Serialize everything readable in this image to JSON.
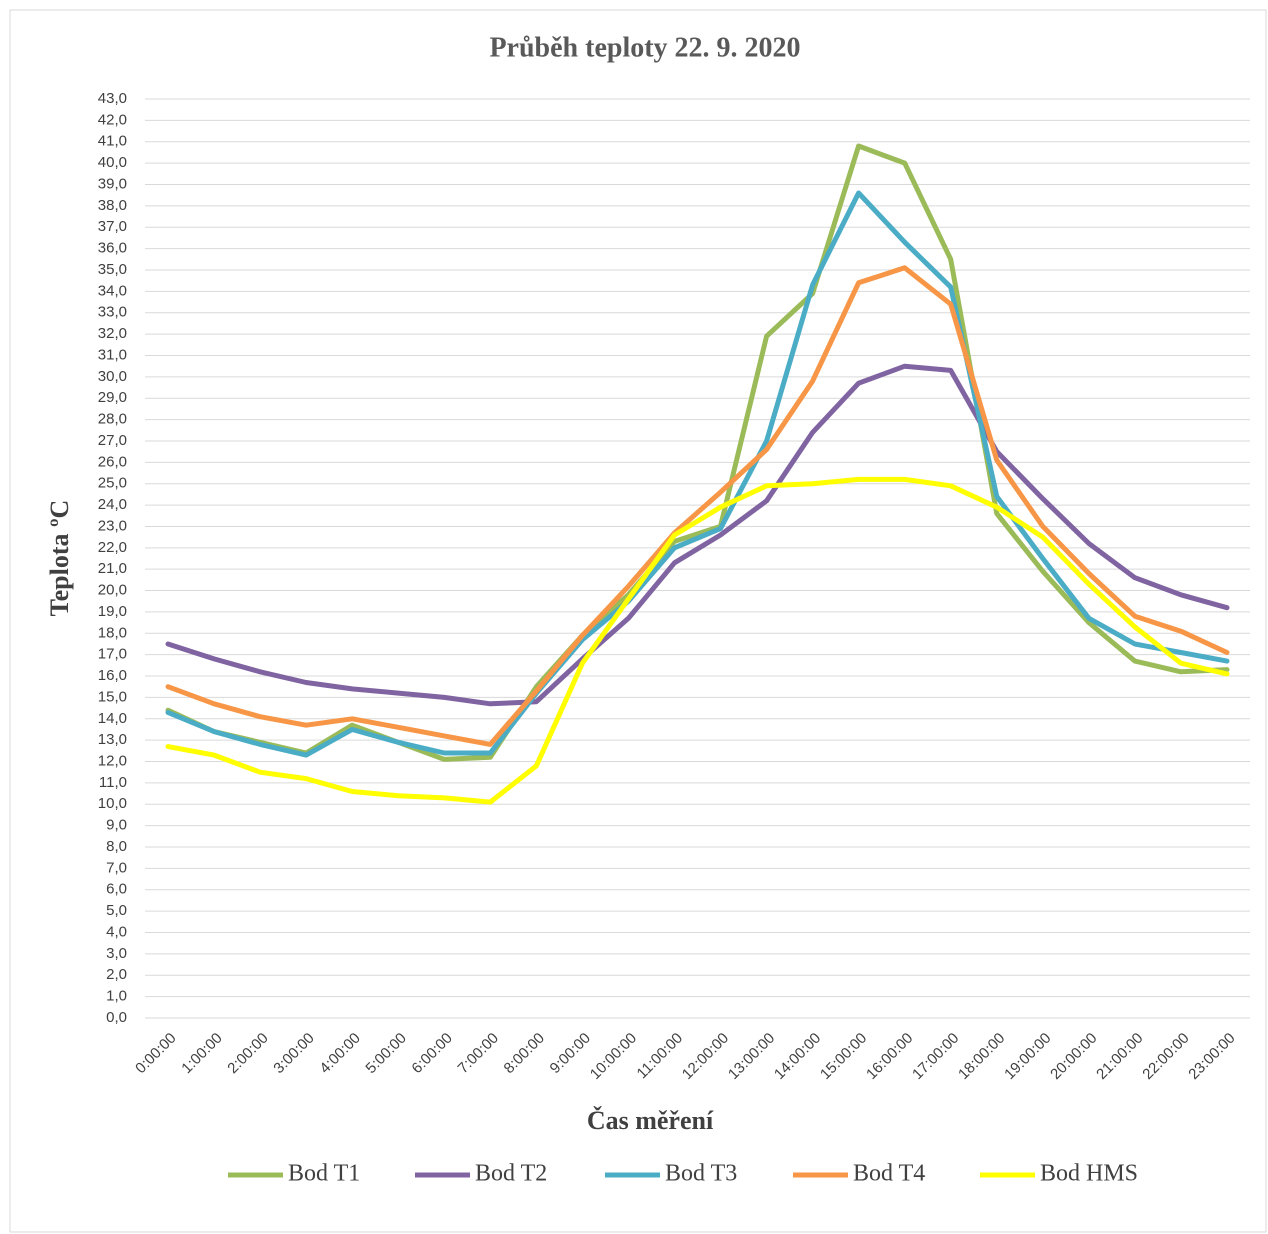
{
  "chart_data": {
    "type": "line",
    "title": "Průběh teploty 22. 9. 2020",
    "x_label": "Čas měření",
    "y_label": "Teplota ºC",
    "categories": [
      "0:00:00",
      "1:00:00",
      "2:00:00",
      "3:00:00",
      "4:00:00",
      "5:00:00",
      "6:00:00",
      "7:00:00",
      "8:00:00",
      "9:00:00",
      "10:00:00",
      "11:00:00",
      "12:00:00",
      "13:00:00",
      "14:00:00",
      "15:00:00",
      "16:00:00",
      "17:00:00",
      "18:00:00",
      "19:00:00",
      "20:00:00",
      "21:00:00",
      "22:00:00",
      "23:00:00"
    ],
    "series": [
      {
        "name": "Bod T1",
        "color": "#9bbb59",
        "values": [
          14.4,
          13.4,
          12.9,
          12.4,
          13.7,
          12.9,
          12.1,
          12.2,
          15.5,
          17.9,
          19.8,
          22.3,
          23.0,
          31.9,
          33.9,
          40.8,
          40.0,
          35.5,
          23.6,
          20.9,
          18.5,
          16.7,
          16.2,
          16.3
        ]
      },
      {
        "name": "Bod T2",
        "color": "#8064a2",
        "values": [
          17.5,
          16.8,
          16.2,
          15.7,
          15.4,
          15.2,
          15.0,
          14.7,
          14.8,
          16.8,
          18.7,
          21.3,
          22.6,
          24.2,
          27.4,
          29.7,
          30.5,
          30.3,
          26.5,
          24.3,
          22.2,
          20.6,
          19.8,
          19.2
        ]
      },
      {
        "name": "Bod T3",
        "color": "#4bacc6",
        "values": [
          14.3,
          13.4,
          12.8,
          12.3,
          13.5,
          12.9,
          12.4,
          12.4,
          15.2,
          17.7,
          19.5,
          22.0,
          22.9,
          27.0,
          34.3,
          38.6,
          36.3,
          34.2,
          24.4,
          21.5,
          18.7,
          17.5,
          17.1,
          16.7
        ]
      },
      {
        "name": "Bod T4",
        "color": "#f79646",
        "values": [
          15.5,
          14.7,
          14.1,
          13.7,
          14.0,
          13.6,
          13.2,
          12.8,
          15.3,
          17.9,
          20.2,
          22.7,
          24.6,
          26.6,
          29.8,
          34.4,
          35.1,
          33.4,
          26.1,
          23.0,
          20.8,
          18.8,
          18.1,
          17.1
        ]
      },
      {
        "name": "Bod HMS",
        "color": "#ffff00",
        "values": [
          12.7,
          12.3,
          11.5,
          11.2,
          10.6,
          10.4,
          10.3,
          10.1,
          11.8,
          16.6,
          19.6,
          22.6,
          23.9,
          24.9,
          25.0,
          25.2,
          25.2,
          24.9,
          23.9,
          22.5,
          20.3,
          18.3,
          16.6,
          16.1
        ]
      }
    ],
    "ylim": [
      0,
      43
    ],
    "yticks": [
      {
        "value": 0,
        "label": "0,0"
      },
      {
        "value": 1,
        "label": "1,0"
      },
      {
        "value": 2,
        "label": "2,0"
      },
      {
        "value": 3,
        "label": "3,0"
      },
      {
        "value": 4,
        "label": "4,0"
      },
      {
        "value": 5,
        "label": "5,0"
      },
      {
        "value": 6,
        "label": "6,0"
      },
      {
        "value": 7,
        "label": "7,0"
      },
      {
        "value": 8,
        "label": "8,0"
      },
      {
        "value": 9,
        "label": "9,0"
      },
      {
        "value": 10,
        "label": "10,0"
      },
      {
        "value": 11,
        "label": "11,0"
      },
      {
        "value": 12,
        "label": "12,0"
      },
      {
        "value": 13,
        "label": "13,0"
      },
      {
        "value": 14,
        "label": "14,0"
      },
      {
        "value": 15,
        "label": "15,0"
      },
      {
        "value": 16,
        "label": "16,0"
      },
      {
        "value": 17,
        "label": "17,0"
      },
      {
        "value": 18,
        "label": "18,0"
      },
      {
        "value": 19,
        "label": "19,0"
      },
      {
        "value": 20,
        "label": "20,0"
      },
      {
        "value": 21,
        "label": "21,0"
      },
      {
        "value": 22,
        "label": "22,0"
      },
      {
        "value": 23,
        "label": "23,0"
      },
      {
        "value": 24,
        "label": "24,0"
      },
      {
        "value": 25,
        "label": "25,0"
      },
      {
        "value": 26,
        "label": "26,0"
      },
      {
        "value": 27,
        "label": "27,0"
      },
      {
        "value": 28,
        "label": "28,0"
      },
      {
        "value": 29,
        "label": "29,0"
      },
      {
        "value": 30,
        "label": "30,0"
      },
      {
        "value": 31,
        "label": "31,0"
      },
      {
        "value": 32,
        "label": "32,0"
      },
      {
        "value": 33,
        "label": "33,0"
      },
      {
        "value": 34,
        "label": "34,0"
      },
      {
        "value": 35,
        "label": "35,0"
      },
      {
        "value": 36,
        "label": "36,0"
      },
      {
        "value": 37,
        "label": "37,0"
      },
      {
        "value": 38,
        "label": "38,0"
      },
      {
        "value": 39,
        "label": "39,0"
      },
      {
        "value": 40,
        "label": "40,0"
      },
      {
        "value": 41,
        "label": "41,0"
      },
      {
        "value": 42,
        "label": "42,0"
      },
      {
        "value": 43,
        "label": "43,0"
      }
    ],
    "grid": true,
    "legend": "bottom"
  }
}
